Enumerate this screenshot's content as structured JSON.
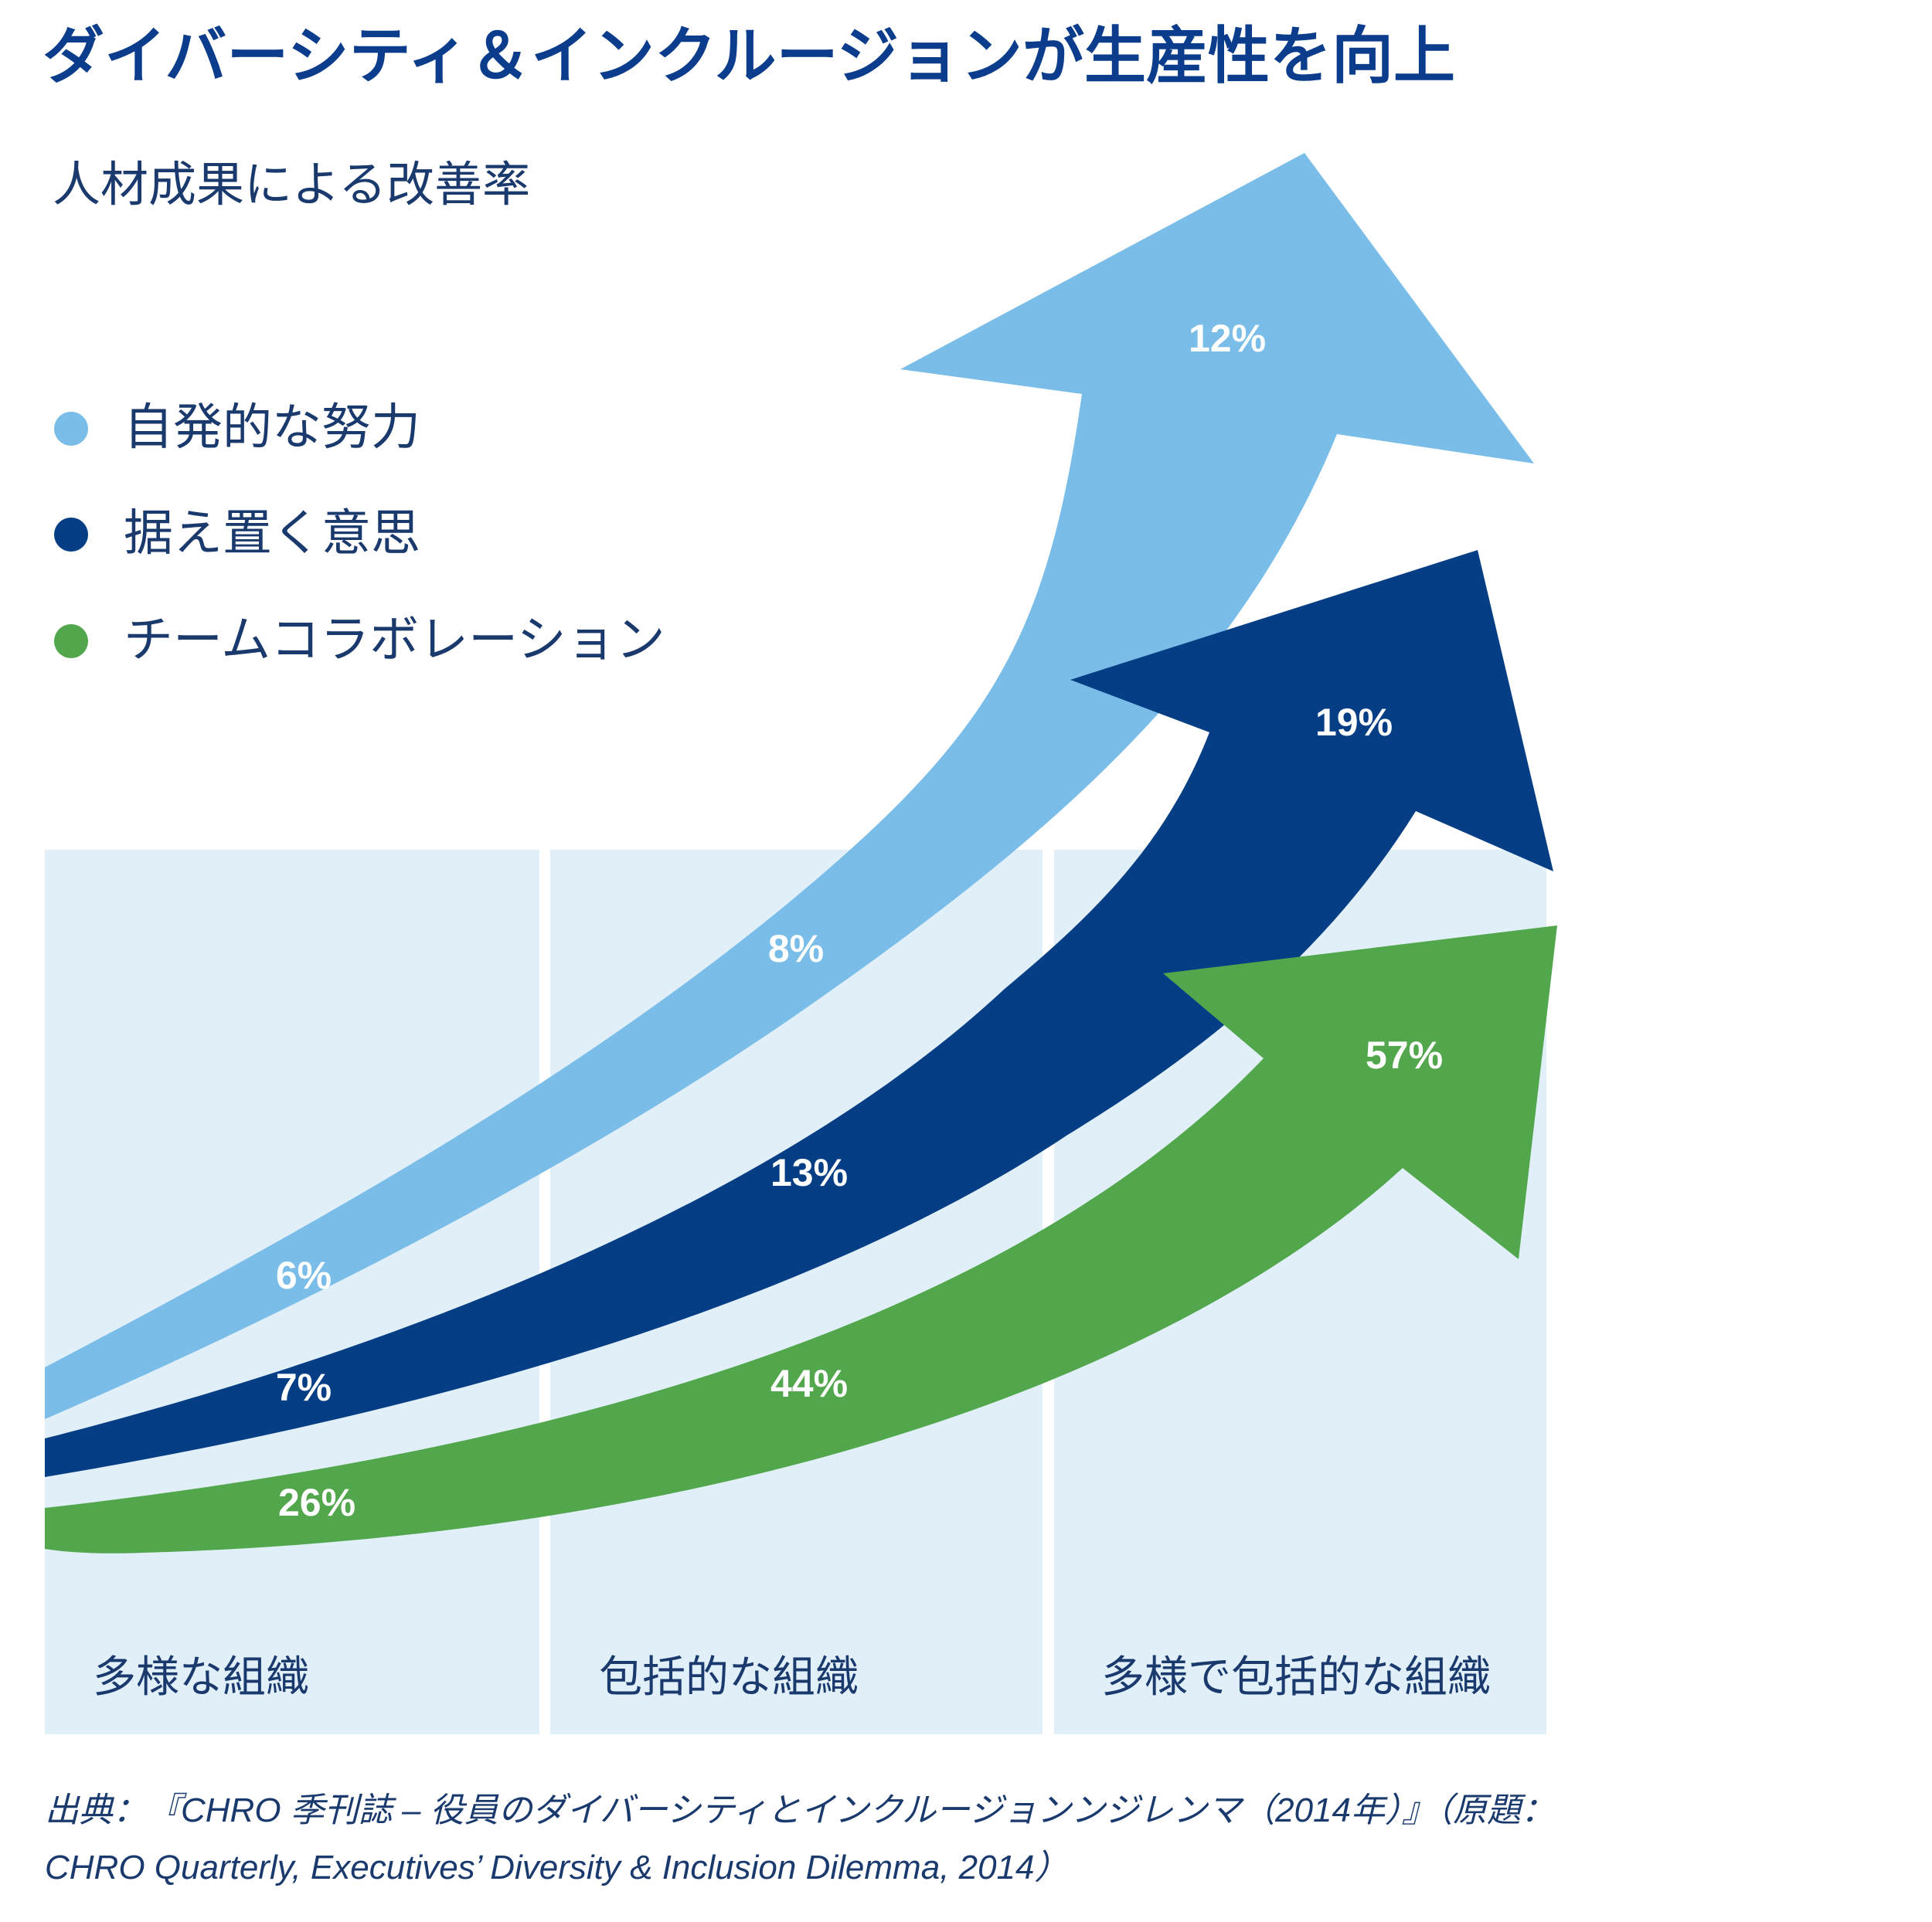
{
  "chart_data": {
    "type": "area",
    "title": "ダイバーシティ＆インクルージョンが生産性を向上",
    "subtitle": "人材成果による改善率",
    "categories": [
      "多様な組織",
      "包括的な組織",
      "多様で包括的な組織"
    ],
    "series": [
      {
        "name": "自発的な努力",
        "color": "#79bde8",
        "values": [
          6,
          8,
          12
        ],
        "labels": [
          "6%",
          "8%",
          "12%"
        ]
      },
      {
        "name": "据え置く意思",
        "color": "#053e85",
        "values": [
          7,
          13,
          19
        ],
        "labels": [
          "7%",
          "13%",
          "19%"
        ]
      },
      {
        "name": "チームコラボレーション",
        "color": "#52a74c",
        "values": [
          26,
          44,
          57
        ],
        "labels": [
          "26%",
          "44%",
          "57%"
        ]
      }
    ],
    "ylabel": "",
    "xlabel": "",
    "legend": "top-left",
    "unit": "%",
    "panel_color": "#e1eff9"
  },
  "source": {
    "line1": "出典：『CHRO 季刊誌 – 役員のダイバーシティとインクルージョンンジレンマ（2014年）』（原題：",
    "line2": "CHRO Quarterly, Executives’ Diversity & Inclusion Dilemma, 2014）"
  }
}
